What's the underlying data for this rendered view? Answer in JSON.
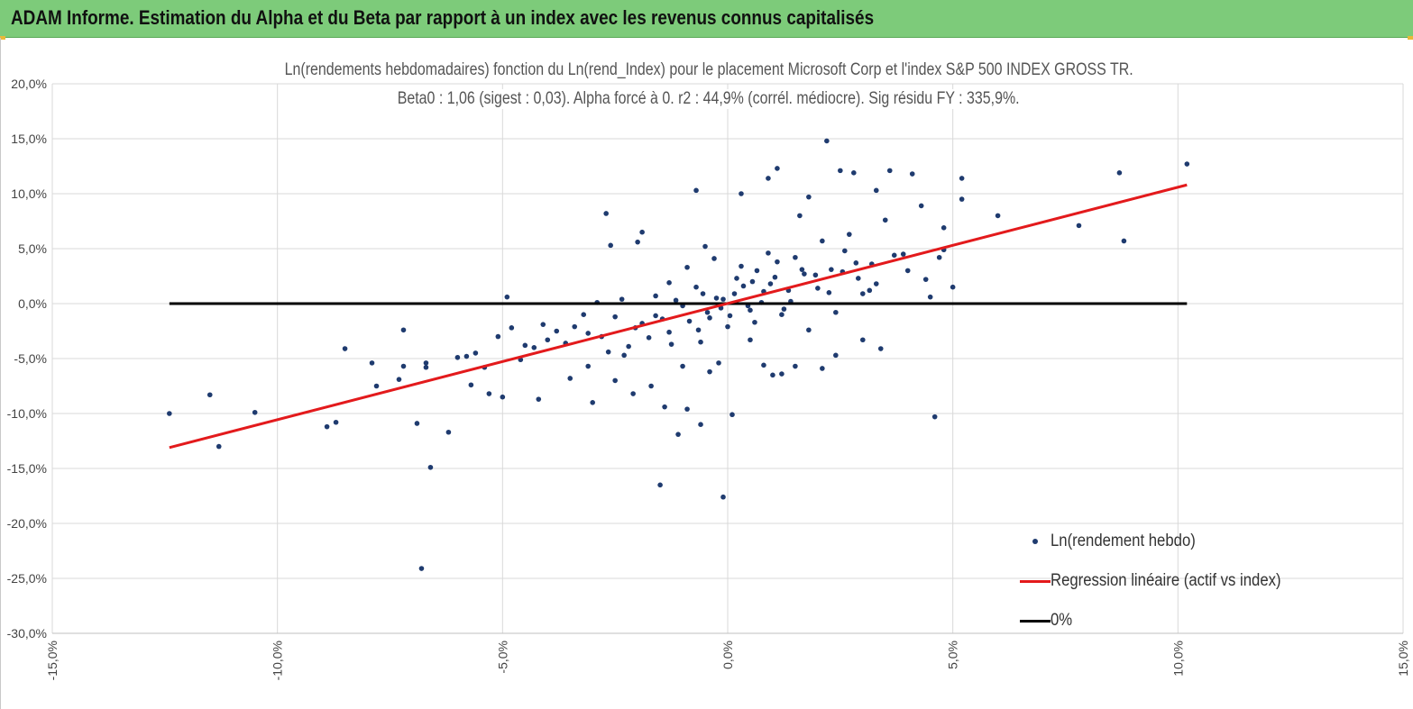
{
  "banner": {
    "title": "ADAM Informe. Estimation du Alpha et du Beta par rapport à un index avec les revenus connus capitalisés"
  },
  "colors": {
    "banner": "#7dcb7a",
    "points": "#1f3b6f",
    "regression": "#e31a1c",
    "zero_line": "#000000",
    "grid": "#d9d9d9"
  },
  "chart_data": {
    "type": "scatter",
    "title_line1": "Ln(rendements hebdomadaires) fonction du Ln(rend_Index) pour le placement Microsoft Corp et l'index S&P 500 INDEX GROSS TR.",
    "title_line2": "Beta0 : 1,06  (sigest : 0,03). Alpha forcé à 0. r2 : 44,9% (corrél. médiocre). Sig résidu FY : 335,9%.",
    "xlim": [
      -15,
      15
    ],
    "ylim": [
      -30,
      20
    ],
    "x_ticks": [
      "-15,0%",
      "-10,0%",
      "-5,0%",
      "0,0%",
      "5,0%",
      "10,0%",
      "15,0%"
    ],
    "y_ticks": [
      "20,0%",
      "15,0%",
      "10,0%",
      "5,0%",
      "0,0%",
      "-5,0%",
      "-10,0%",
      "-15,0%",
      "-20,0%",
      "-25,0%",
      "-30,0%"
    ],
    "grid": true,
    "legend_position": "bottom-right",
    "series": [
      {
        "name": "Ln(rendement hebdo)",
        "kind": "scatter",
        "points": [
          [
            -12.4,
            -10.0
          ],
          [
            -11.5,
            -8.3
          ],
          [
            -11.3,
            -13.0
          ],
          [
            -10.5,
            -9.9
          ],
          [
            -8.9,
            -11.2
          ],
          [
            -8.7,
            -10.8
          ],
          [
            -8.5,
            -4.1
          ],
          [
            -7.9,
            -5.4
          ],
          [
            -7.8,
            -7.5
          ],
          [
            -7.3,
            -6.9
          ],
          [
            -7.2,
            -2.4
          ],
          [
            -7.2,
            -5.7
          ],
          [
            -6.9,
            -10.9
          ],
          [
            -6.8,
            -24.1
          ],
          [
            -6.7,
            -5.4
          ],
          [
            -6.7,
            -5.8
          ],
          [
            -6.6,
            -14.9
          ],
          [
            -6.2,
            -11.7
          ],
          [
            -6.0,
            -4.9
          ],
          [
            -5.8,
            -4.8
          ],
          [
            -5.7,
            -7.4
          ],
          [
            -5.6,
            -4.5
          ],
          [
            -5.4,
            -5.8
          ],
          [
            -5.3,
            -8.2
          ],
          [
            -5.1,
            -3.0
          ],
          [
            -5.0,
            -8.5
          ],
          [
            -4.9,
            0.6
          ],
          [
            -4.8,
            -2.2
          ],
          [
            -4.6,
            -5.1
          ],
          [
            -4.5,
            -3.8
          ],
          [
            -4.3,
            -4.0
          ],
          [
            -4.2,
            -8.7
          ],
          [
            -4.0,
            -3.3
          ],
          [
            -3.8,
            -2.5
          ],
          [
            -3.5,
            -6.8
          ],
          [
            -3.4,
            -2.1
          ],
          [
            -3.2,
            -1.0
          ],
          [
            -3.1,
            -5.7
          ],
          [
            -3.0,
            -9.0
          ],
          [
            -2.9,
            0.1
          ],
          [
            -2.7,
            8.2
          ],
          [
            -2.6,
            5.3
          ],
          [
            -2.5,
            -7.0
          ],
          [
            -2.3,
            -4.7
          ],
          [
            -2.1,
            -8.2
          ],
          [
            -2.0,
            5.6
          ],
          [
            -1.9,
            6.5
          ],
          [
            -1.7,
            -7.5
          ],
          [
            -1.6,
            -1.1
          ],
          [
            -1.5,
            -16.5
          ],
          [
            -1.4,
            -9.4
          ],
          [
            -1.3,
            1.9
          ],
          [
            -1.1,
            -11.9
          ],
          [
            -1.0,
            -5.7
          ],
          [
            -0.9,
            -9.6
          ],
          [
            -0.7,
            10.3
          ],
          [
            -0.6,
            -11.0
          ],
          [
            -0.5,
            5.2
          ],
          [
            -0.4,
            -6.2
          ],
          [
            -0.2,
            -5.4
          ],
          [
            -0.1,
            -17.6
          ],
          [
            0.1,
            -10.1
          ],
          [
            0.3,
            10.0
          ],
          [
            0.5,
            -3.3
          ],
          [
            0.8,
            -5.6
          ],
          [
            0.9,
            11.4
          ],
          [
            1.0,
            -6.5
          ],
          [
            1.1,
            12.3
          ],
          [
            1.2,
            -6.4
          ],
          [
            1.5,
            -5.7
          ],
          [
            1.6,
            8.0
          ],
          [
            1.8,
            9.7
          ],
          [
            2.1,
            -5.9
          ],
          [
            2.2,
            14.8
          ],
          [
            2.4,
            -4.7
          ],
          [
            2.5,
            12.1
          ],
          [
            2.8,
            11.9
          ],
          [
            3.0,
            -3.3
          ],
          [
            3.3,
            10.3
          ],
          [
            3.4,
            -4.1
          ],
          [
            3.5,
            7.6
          ],
          [
            3.6,
            12.1
          ],
          [
            3.9,
            4.5
          ],
          [
            4.1,
            11.8
          ],
          [
            4.3,
            8.9
          ],
          [
            4.5,
            0.6
          ],
          [
            4.6,
            -10.3
          ],
          [
            4.7,
            4.2
          ],
          [
            4.8,
            6.9
          ],
          [
            5.0,
            1.5
          ],
          [
            5.2,
            11.4
          ],
          [
            5.2,
            9.5
          ],
          [
            6.0,
            8.0
          ],
          [
            7.8,
            7.1
          ],
          [
            8.7,
            11.9
          ],
          [
            8.8,
            5.7
          ],
          [
            10.2,
            12.7
          ],
          [
            3.2,
            3.6
          ],
          [
            2.9,
            2.3
          ],
          [
            2.6,
            4.8
          ],
          [
            2.3,
            3.1
          ],
          [
            2.0,
            1.4
          ],
          [
            1.7,
            2.7
          ],
          [
            1.4,
            0.2
          ],
          [
            1.1,
            3.8
          ],
          [
            0.8,
            1.1
          ],
          [
            0.5,
            -0.6
          ],
          [
            0.2,
            2.3
          ],
          [
            -0.1,
            0.4
          ],
          [
            -0.4,
            -1.3
          ],
          [
            -0.7,
            1.5
          ],
          [
            -1.0,
            -0.2
          ],
          [
            -1.3,
            -2.6
          ],
          [
            -1.6,
            0.7
          ],
          [
            -1.9,
            -1.8
          ],
          [
            -2.2,
            -3.9
          ],
          [
            -2.5,
            -1.2
          ],
          [
            -2.8,
            -3.0
          ],
          [
            -3.1,
            -2.7
          ],
          [
            -3.6,
            -3.6
          ],
          [
            -4.1,
            -1.9
          ],
          [
            -0.9,
            3.3
          ],
          [
            -0.6,
            -3.5
          ],
          [
            -0.3,
            4.1
          ],
          [
            0.0,
            -2.1
          ],
          [
            0.3,
            3.4
          ],
          [
            0.6,
            -1.7
          ],
          [
            0.9,
            4.6
          ],
          [
            1.2,
            -1.0
          ],
          [
            1.5,
            4.2
          ],
          [
            1.8,
            -2.4
          ],
          [
            2.1,
            5.7
          ],
          [
            2.4,
            -0.8
          ],
          [
            2.7,
            6.3
          ],
          [
            3.0,
            0.9
          ],
          [
            3.3,
            1.8
          ],
          [
            3.7,
            4.4
          ],
          [
            4.0,
            3.0
          ],
          [
            4.4,
            2.2
          ],
          [
            4.8,
            4.9
          ],
          [
            0.15,
            0.9
          ],
          [
            0.35,
            1.6
          ],
          [
            -0.25,
            0.5
          ],
          [
            0.55,
            2.0
          ],
          [
            0.75,
            0.1
          ],
          [
            -0.45,
            -0.8
          ],
          [
            0.95,
            1.8
          ],
          [
            1.35,
            1.2
          ],
          [
            -0.15,
            -0.4
          ],
          [
            0.45,
            -0.2
          ],
          [
            1.65,
            3.1
          ],
          [
            1.95,
            2.6
          ],
          [
            -0.55,
            0.9
          ],
          [
            -0.85,
            -1.6
          ],
          [
            -1.15,
            0.3
          ],
          [
            -1.45,
            -1.4
          ],
          [
            -1.75,
            -3.1
          ],
          [
            -2.05,
            -2.2
          ],
          [
            2.25,
            1.0
          ],
          [
            2.55,
            2.9
          ],
          [
            2.85,
            3.7
          ],
          [
            3.15,
            1.2
          ],
          [
            0.65,
            3.0
          ],
          [
            1.05,
            2.4
          ],
          [
            1.25,
            -0.5
          ],
          [
            0.05,
            -1.1
          ],
          [
            -0.65,
            -2.4
          ],
          [
            -1.25,
            -3.7
          ],
          [
            -2.35,
            0.4
          ],
          [
            -2.65,
            -4.4
          ]
        ]
      },
      {
        "name": "Regression linéaire (actif vs index)",
        "kind": "line",
        "points": [
          [
            -12.4,
            -13.1
          ],
          [
            10.2,
            10.8
          ]
        ]
      },
      {
        "name": "0%",
        "kind": "line",
        "points": [
          [
            -12.4,
            0
          ],
          [
            10.2,
            0
          ]
        ]
      }
    ]
  }
}
